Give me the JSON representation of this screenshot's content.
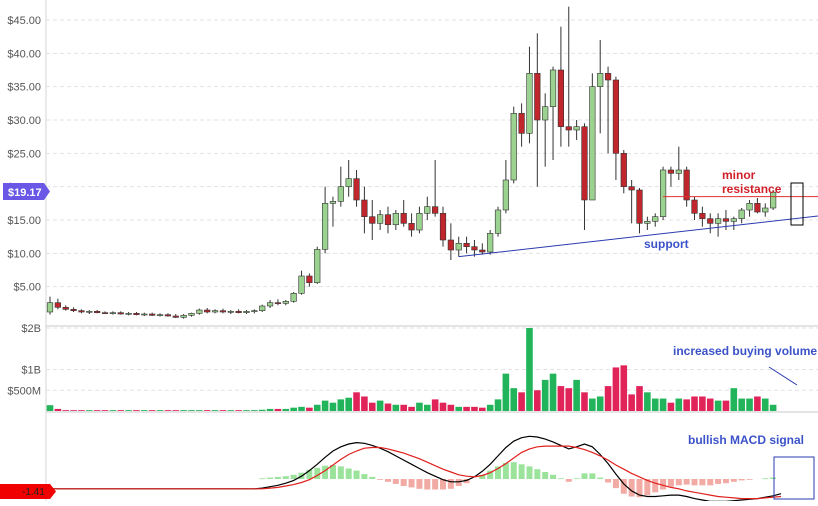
{
  "chart_data": {
    "type": "candlestick",
    "price_panel": {
      "y_ticks": [
        5,
        10,
        15,
        20,
        25,
        30,
        35,
        40,
        45
      ],
      "y_tick_labels": [
        "$5.00",
        "$10.00",
        "$15.00",
        "$20.00",
        "$25.00",
        "$30.00",
        "$35.00",
        "$40.00",
        "$45.00"
      ],
      "ylim": [
        0,
        46.8
      ],
      "current_price_label": "$19.17",
      "current_price": 19.17,
      "candles": [
        {
          "o": 1.2,
          "h": 3.5,
          "l": 0.8,
          "c": 2.6
        },
        {
          "o": 2.6,
          "h": 3.2,
          "l": 1.6,
          "c": 1.9
        },
        {
          "o": 1.9,
          "h": 2.2,
          "l": 1.4,
          "c": 1.6
        },
        {
          "o": 1.6,
          "h": 1.9,
          "l": 1.2,
          "c": 1.4
        },
        {
          "o": 1.4,
          "h": 1.6,
          "l": 1.0,
          "c": 1.2
        },
        {
          "o": 1.2,
          "h": 1.5,
          "l": 0.9,
          "c": 1.3
        },
        {
          "o": 1.3,
          "h": 1.5,
          "l": 1.0,
          "c": 1.1
        },
        {
          "o": 1.1,
          "h": 1.3,
          "l": 0.9,
          "c": 1.0
        },
        {
          "o": 1.0,
          "h": 1.3,
          "l": 0.8,
          "c": 1.1
        },
        {
          "o": 1.1,
          "h": 1.3,
          "l": 0.8,
          "c": 0.9
        },
        {
          "o": 0.9,
          "h": 1.2,
          "l": 0.7,
          "c": 1.0
        },
        {
          "o": 1.0,
          "h": 1.2,
          "l": 0.7,
          "c": 0.8
        },
        {
          "o": 0.8,
          "h": 1.1,
          "l": 0.6,
          "c": 0.9
        },
        {
          "o": 0.9,
          "h": 1.1,
          "l": 0.6,
          "c": 0.7
        },
        {
          "o": 0.7,
          "h": 1.0,
          "l": 0.5,
          "c": 0.8
        },
        {
          "o": 0.8,
          "h": 1.0,
          "l": 0.5,
          "c": 0.6
        },
        {
          "o": 0.6,
          "h": 0.9,
          "l": 0.3,
          "c": 0.4
        },
        {
          "o": 0.4,
          "h": 0.9,
          "l": 0.2,
          "c": 0.7
        },
        {
          "o": 0.7,
          "h": 1.1,
          "l": 0.5,
          "c": 1.0
        },
        {
          "o": 1.0,
          "h": 1.7,
          "l": 0.8,
          "c": 1.5
        },
        {
          "o": 1.5,
          "h": 1.8,
          "l": 1.0,
          "c": 1.2
        },
        {
          "o": 1.2,
          "h": 1.6,
          "l": 1.0,
          "c": 1.4
        },
        {
          "o": 1.4,
          "h": 1.7,
          "l": 1.0,
          "c": 1.2
        },
        {
          "o": 1.2,
          "h": 1.5,
          "l": 0.9,
          "c": 1.3
        },
        {
          "o": 1.3,
          "h": 1.6,
          "l": 1.0,
          "c": 1.1
        },
        {
          "o": 1.1,
          "h": 1.5,
          "l": 0.9,
          "c": 1.3
        },
        {
          "o": 1.3,
          "h": 1.6,
          "l": 1.0,
          "c": 1.4
        },
        {
          "o": 1.4,
          "h": 2.3,
          "l": 1.2,
          "c": 2.1
        },
        {
          "o": 2.1,
          "h": 3.0,
          "l": 1.8,
          "c": 2.6
        },
        {
          "o": 2.6,
          "h": 3.1,
          "l": 2.2,
          "c": 2.5
        },
        {
          "o": 2.5,
          "h": 3.0,
          "l": 2.2,
          "c": 2.8
        },
        {
          "o": 2.8,
          "h": 4.2,
          "l": 2.6,
          "c": 4.0
        },
        {
          "o": 4.0,
          "h": 7.4,
          "l": 3.8,
          "c": 6.6
        },
        {
          "o": 6.6,
          "h": 7.0,
          "l": 5.0,
          "c": 5.6
        },
        {
          "o": 5.6,
          "h": 11.0,
          "l": 5.4,
          "c": 10.6
        },
        {
          "o": 10.6,
          "h": 20.0,
          "l": 10.0,
          "c": 17.5
        },
        {
          "o": 17.5,
          "h": 18.5,
          "l": 14.0,
          "c": 17.8
        },
        {
          "o": 17.8,
          "h": 23.0,
          "l": 17.0,
          "c": 20.0
        },
        {
          "o": 20.0,
          "h": 24.0,
          "l": 18.5,
          "c": 21.2
        },
        {
          "o": 21.2,
          "h": 22.5,
          "l": 17.0,
          "c": 18.0
        },
        {
          "o": 18.0,
          "h": 20.0,
          "l": 13.0,
          "c": 15.5
        },
        {
          "o": 15.5,
          "h": 18.0,
          "l": 12.0,
          "c": 14.5
        },
        {
          "o": 14.5,
          "h": 16.5,
          "l": 13.5,
          "c": 15.8
        },
        {
          "o": 15.8,
          "h": 17.0,
          "l": 13.0,
          "c": 14.3
        },
        {
          "o": 14.3,
          "h": 16.5,
          "l": 13.5,
          "c": 16.0
        },
        {
          "o": 16.0,
          "h": 18.0,
          "l": 14.0,
          "c": 14.5
        },
        {
          "o": 14.5,
          "h": 16.0,
          "l": 12.5,
          "c": 13.5
        },
        {
          "o": 13.5,
          "h": 17.0,
          "l": 13.0,
          "c": 16.0
        },
        {
          "o": 16.0,
          "h": 18.5,
          "l": 15.0,
          "c": 17.0
        },
        {
          "o": 17.0,
          "h": 24.0,
          "l": 15.5,
          "c": 16.0
        },
        {
          "o": 16.0,
          "h": 17.0,
          "l": 11.0,
          "c": 12.0
        },
        {
          "o": 12.0,
          "h": 14.5,
          "l": 9.0,
          "c": 10.5
        },
        {
          "o": 10.5,
          "h": 12.5,
          "l": 9.5,
          "c": 11.5
        },
        {
          "o": 11.5,
          "h": 12.5,
          "l": 10.0,
          "c": 11.0
        },
        {
          "o": 11.0,
          "h": 12.0,
          "l": 9.5,
          "c": 10.5
        },
        {
          "o": 10.5,
          "h": 11.5,
          "l": 9.8,
          "c": 10.2
        },
        {
          "o": 10.2,
          "h": 13.5,
          "l": 9.8,
          "c": 13.0
        },
        {
          "o": 13.0,
          "h": 17.0,
          "l": 12.5,
          "c": 16.5
        },
        {
          "o": 16.5,
          "h": 24.0,
          "l": 16.0,
          "c": 21.0
        },
        {
          "o": 21.0,
          "h": 32.0,
          "l": 20.5,
          "c": 31.0
        },
        {
          "o": 31.0,
          "h": 32.5,
          "l": 26.0,
          "c": 28.0
        },
        {
          "o": 28.0,
          "h": 41.0,
          "l": 26.5,
          "c": 37.0
        },
        {
          "o": 37.0,
          "h": 43.0,
          "l": 20.0,
          "c": 30.0
        },
        {
          "o": 30.0,
          "h": 34.0,
          "l": 23.0,
          "c": 32.0
        },
        {
          "o": 32.0,
          "h": 38.0,
          "l": 24.0,
          "c": 37.5
        },
        {
          "o": 37.5,
          "h": 44.0,
          "l": 26.0,
          "c": 29.0
        },
        {
          "o": 29.0,
          "h": 47.0,
          "l": 26.0,
          "c": 28.5
        },
        {
          "o": 28.5,
          "h": 30.0,
          "l": 27.0,
          "c": 29.0
        },
        {
          "o": 29.0,
          "h": 29.5,
          "l": 13.5,
          "c": 18.0
        },
        {
          "o": 18.0,
          "h": 37.0,
          "l": 18.0,
          "c": 35.0
        },
        {
          "o": 35.0,
          "h": 42.0,
          "l": 28.0,
          "c": 37.0
        },
        {
          "o": 37.0,
          "h": 38.0,
          "l": 25.0,
          "c": 36.0
        },
        {
          "o": 36.0,
          "h": 36.5,
          "l": 21.0,
          "c": 25.0
        },
        {
          "o": 25.0,
          "h": 25.5,
          "l": 19.0,
          "c": 20.0
        },
        {
          "o": 20.0,
          "h": 21.0,
          "l": 14.5,
          "c": 19.5
        },
        {
          "o": 19.5,
          "h": 19.8,
          "l": 13.0,
          "c": 14.5
        },
        {
          "o": 14.5,
          "h": 15.5,
          "l": 13.5,
          "c": 14.8
        },
        {
          "o": 14.8,
          "h": 16.0,
          "l": 14.0,
          "c": 15.5
        },
        {
          "o": 15.5,
          "h": 23.0,
          "l": 15.0,
          "c": 22.5
        },
        {
          "o": 22.5,
          "h": 23.0,
          "l": 20.0,
          "c": 22.0
        },
        {
          "o": 22.0,
          "h": 26.0,
          "l": 21.0,
          "c": 22.5
        },
        {
          "o": 22.5,
          "h": 23.0,
          "l": 17.0,
          "c": 18.0
        },
        {
          "o": 18.0,
          "h": 18.5,
          "l": 15.0,
          "c": 16.0
        },
        {
          "o": 16.0,
          "h": 17.0,
          "l": 14.0,
          "c": 15.2
        },
        {
          "o": 15.2,
          "h": 16.0,
          "l": 13.0,
          "c": 14.5
        },
        {
          "o": 14.5,
          "h": 16.0,
          "l": 12.5,
          "c": 15.2
        },
        {
          "o": 15.2,
          "h": 16.5,
          "l": 13.5,
          "c": 14.8
        },
        {
          "o": 14.8,
          "h": 15.5,
          "l": 13.5,
          "c": 15.2
        },
        {
          "o": 15.2,
          "h": 16.8,
          "l": 14.5,
          "c": 16.5
        },
        {
          "o": 16.5,
          "h": 18.0,
          "l": 15.5,
          "c": 17.5
        },
        {
          "o": 17.5,
          "h": 18.3,
          "l": 16.0,
          "c": 16.2
        },
        {
          "o": 16.2,
          "h": 17.5,
          "l": 15.5,
          "c": 16.8
        },
        {
          "o": 16.8,
          "h": 19.5,
          "l": 16.5,
          "c": 19.17
        }
      ]
    },
    "volume_panel": {
      "y_ticks": [
        0.5,
        1,
        2
      ],
      "y_tick_labels": [
        "$500M",
        "$1B",
        "$2B"
      ],
      "ymax": 2.0,
      "values": [
        0.14,
        0.05,
        0.02,
        0.02,
        0.02,
        0.02,
        0.02,
        0.02,
        0.02,
        0.02,
        0.02,
        0.02,
        0.02,
        0.02,
        0.02,
        0.02,
        0.02,
        0.02,
        0.02,
        0.02,
        0.02,
        0.02,
        0.02,
        0.02,
        0.02,
        0.02,
        0.02,
        0.03,
        0.05,
        0.05,
        0.05,
        0.08,
        0.1,
        0.08,
        0.15,
        0.25,
        0.2,
        0.28,
        0.32,
        0.45,
        0.35,
        0.2,
        0.25,
        0.18,
        0.15,
        0.15,
        0.1,
        0.2,
        0.15,
        0.28,
        0.2,
        0.15,
        0.1,
        0.1,
        0.1,
        0.08,
        0.15,
        0.28,
        0.9,
        0.55,
        0.45,
        2.0,
        0.5,
        0.75,
        0.9,
        0.6,
        0.55,
        0.75,
        0.45,
        0.3,
        0.35,
        0.6,
        1.05,
        1.1,
        0.4,
        0.6,
        0.45,
        0.3,
        0.3,
        0.2,
        0.3,
        0.28,
        0.35,
        0.35,
        0.3,
        0.25,
        0.25,
        0.55,
        0.3,
        0.3,
        0.35,
        0.3,
        0.15,
        0.4
      ]
    },
    "macd_panel": {
      "value_label": "-1.41",
      "macd": [
        -1.4,
        -1.4,
        -1.4,
        -1.4,
        -1.4,
        -1.4,
        -1.4,
        -1.4,
        -1.4,
        -1.4,
        -1.4,
        -1.4,
        -1.4,
        -1.4,
        -1.4,
        -1.4,
        -1.4,
        -1.4,
        -1.4,
        -1.4,
        -1.4,
        -1.4,
        -1.4,
        -1.4,
        -1.4,
        -1.4,
        -1.4,
        -1.3,
        -1.1,
        -0.9,
        -0.6,
        -0.2,
        0.4,
        1.2,
        2.1,
        3.1,
        4.0,
        4.6,
        5.0,
        5.2,
        5.1,
        4.8,
        4.4,
        3.9,
        3.3,
        2.7,
        2.1,
        1.5,
        0.9,
        0.4,
        -0.1,
        -0.4,
        -0.4,
        -0.2,
        0.3,
        1.1,
        2.1,
        3.3,
        4.5,
        5.4,
        5.9,
        6.1,
        6.0,
        5.7,
        5.3,
        4.8,
        4.3,
        4.6,
        5.0,
        4.6,
        3.5,
        2.2,
        0.7,
        -0.7,
        -1.7,
        -2.3,
        -2.5,
        -2.5,
        -2.4,
        -2.3,
        -2.3,
        -2.5,
        -2.8,
        -3.0,
        -3.2,
        -3.2,
        -3.2,
        -3.1,
        -3.0,
        -2.9,
        -2.8,
        -2.6,
        -2.4,
        -2.1
      ],
      "signal": [
        -1.4,
        -1.4,
        -1.4,
        -1.4,
        -1.4,
        -1.4,
        -1.4,
        -1.4,
        -1.4,
        -1.4,
        -1.4,
        -1.4,
        -1.4,
        -1.4,
        -1.4,
        -1.4,
        -1.4,
        -1.4,
        -1.4,
        -1.4,
        -1.4,
        -1.4,
        -1.4,
        -1.4,
        -1.4,
        -1.4,
        -1.4,
        -1.4,
        -1.3,
        -1.2,
        -1.0,
        -0.8,
        -0.5,
        -0.1,
        0.5,
        1.2,
        2.0,
        2.8,
        3.5,
        4.0,
        4.4,
        4.5,
        4.5,
        4.3,
        4.0,
        3.7,
        3.3,
        2.9,
        2.4,
        1.9,
        1.4,
        1.0,
        0.6,
        0.4,
        0.3,
        0.5,
        0.9,
        1.5,
        2.2,
        3.0,
        3.8,
        4.3,
        4.6,
        4.7,
        4.7,
        4.7,
        4.7,
        4.5,
        4.2,
        3.8,
        3.3,
        2.7,
        2.0,
        1.4,
        0.8,
        0.3,
        -0.2,
        -0.6,
        -0.9,
        -1.2,
        -1.4,
        -1.7,
        -1.9,
        -2.1,
        -2.3,
        -2.5,
        -2.6,
        -2.7,
        -2.8,
        -2.8,
        -2.8,
        -2.7,
        -2.6,
        -2.5
      ]
    },
    "lines": {
      "support": {
        "x": [
          52,
          98
        ],
        "y": [
          9.5,
          15.6
        ]
      },
      "minor_resistance": {
        "x": [
          78,
          98
        ],
        "y": [
          18.5,
          18.5
        ]
      }
    },
    "annotations": {
      "minor_resistance": [
        "minor",
        "resistance"
      ],
      "support": "support",
      "volume": "increased buying volume",
      "macd": "bullish MACD signal"
    },
    "colors": {
      "bull": "#9bd28f",
      "bear": "#c0262c",
      "vol_bull": "#22b45a",
      "vol_bear": "#e0245a",
      "hist_pos": "#9be39b",
      "hist_neg": "#f2aaa4",
      "macd_line": "#000000",
      "signal_line": "#e0201c",
      "support_line": "#2b3bb0",
      "resistance_line": "#e03030",
      "price_badge": "#6a57e6",
      "macd_badge": "#f00000"
    }
  }
}
